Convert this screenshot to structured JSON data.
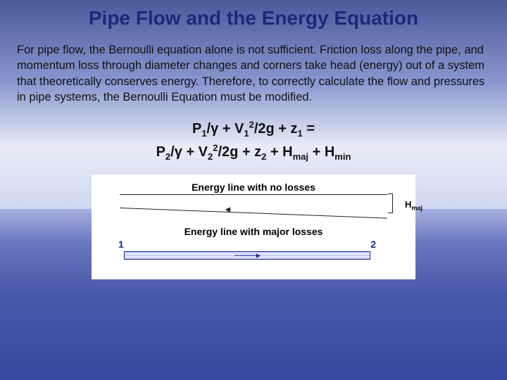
{
  "title": "Pipe Flow and the Energy Equation",
  "body_text": "For pipe flow, the Bernoulli equation alone is not sufficient.  Friction loss along the pipe, and momentum loss through diameter changes and corners take head (energy) out of a system that theoretically conserves energy. Therefore, to correctly calculate the flow and pressures in pipe systems, the Bernoulli Equation must be modified.",
  "equation": {
    "line1_html": "P<sub>1</sub>/γ + V<sub>1</sub><sup>2</sup>/2g + z<sub>1</sub> =",
    "line2_html": "P<sub>2</sub>/γ + V<sub>2</sub><sup>2</sup>/2g + z<sub>2</sub> + H<sub>maj</sub> + H<sub>min</sub>"
  },
  "diagram": {
    "label_no_loss": "Energy line with no losses",
    "label_major_loss": "Energy line with major losses",
    "hmaj_label_html": "H<sub>maj</sub>",
    "point1": "1",
    "point2": "2",
    "colors": {
      "text": "#111111",
      "title": "#1a2a7a",
      "pipe_border": "#1a2a8a",
      "background": "#ffffff"
    }
  }
}
